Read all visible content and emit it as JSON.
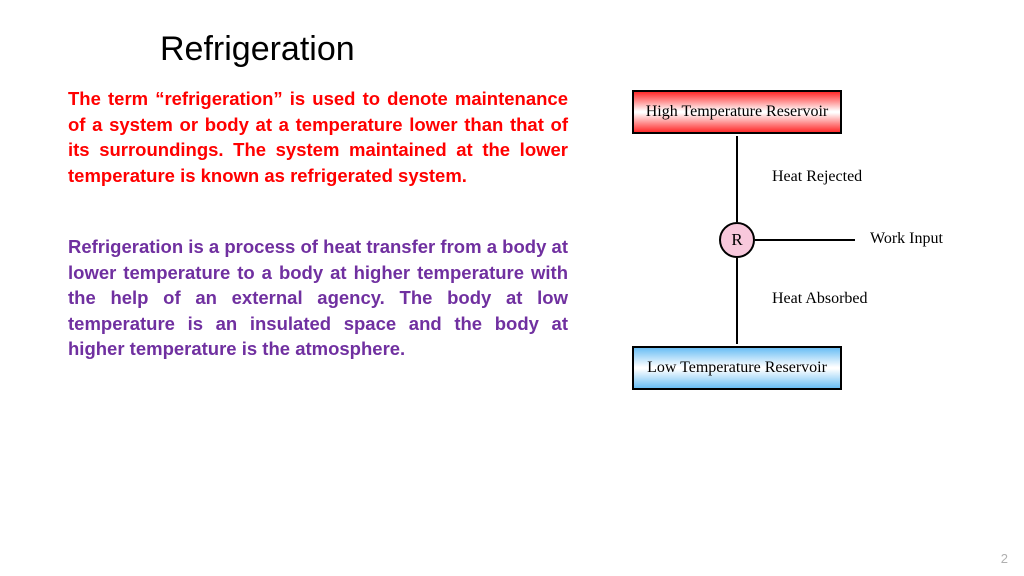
{
  "title": "Refrigeration",
  "para1": "The term “refrigeration” is used to denote maintenance of a system or body at a temperature lower than that of its surroundings. The system maintained at the lower temperature is known as refrigerated system.",
  "para2": "Refrigeration is a process of heat transfer from a body at lower temperature to a body at higher temperature with the help of an external agency. The body at low temperature is an insulated space and the body at higher temperature is the atmosphere.",
  "diagram": {
    "high_box": "High Temperature Reservoir",
    "low_box": "Low Temperature Reservoir",
    "circle": "R",
    "heat_rejected": "Heat Rejected",
    "work_input": "Work Input",
    "heat_absorbed": "Heat Absorbed",
    "high_color_outer": "#ff2a2a",
    "low_color_outer": "#6abef4",
    "circle_fill": "#f8c8dc",
    "border_color": "#000000"
  },
  "page_number": "2",
  "colors": {
    "title": "#000000",
    "para1": "#ff0000",
    "para2": "#7030a0",
    "background": "#ffffff"
  }
}
